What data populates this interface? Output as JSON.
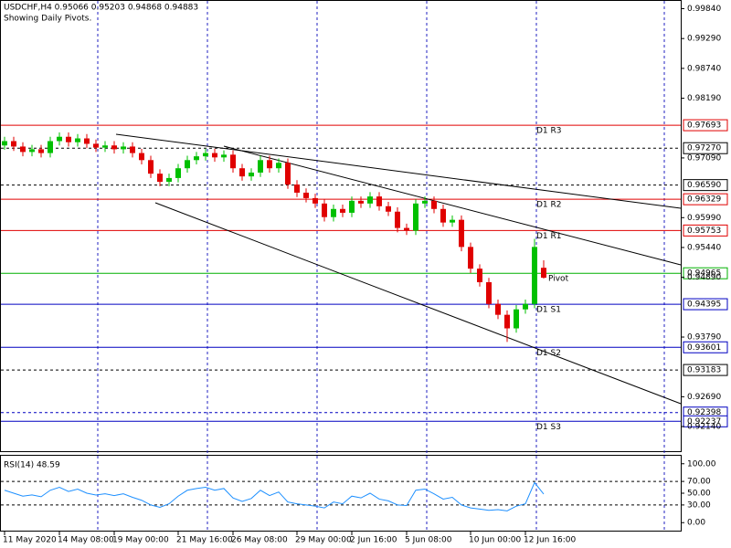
{
  "chart_data": [
    {
      "type": "candlestick",
      "title": "USDCHF,H4  0.95066 0.95203 0.94868 0.94883",
      "subtitle": "Showing Daily Pivots.",
      "categories": [
        "11 May 2020",
        null,
        null,
        null,
        null,
        null,
        "14 May 08:00",
        null,
        null,
        null,
        null,
        null,
        "19 May 00:00",
        null,
        null,
        null,
        null,
        null,
        null,
        "21 May 16:00",
        null,
        null,
        null,
        null,
        null,
        "26 May 08:00",
        null,
        null,
        null,
        null,
        null,
        null,
        "29 May 00:00",
        null,
        null,
        null,
        null,
        null,
        "2 Jun 16:00",
        null,
        null,
        null,
        null,
        null,
        "5 Jun 08:00",
        null,
        null,
        null,
        null,
        null,
        null,
        "10 Jun 00:00",
        null,
        null,
        null,
        null,
        null,
        "12 Jun 16:00",
        null,
        null
      ],
      "open": [
        0.9732,
        0.974,
        0.973,
        0.972,
        0.9725,
        0.9718,
        0.974,
        0.9748,
        0.9738,
        0.9745,
        0.9735,
        0.9728,
        0.9732,
        0.9725,
        0.973,
        0.9718,
        0.9705,
        0.968,
        0.9665,
        0.9672,
        0.969,
        0.9705,
        0.9712,
        0.9718,
        0.971,
        0.9715,
        0.969,
        0.9675,
        0.9682,
        0.9705,
        0.969,
        0.97,
        0.966,
        0.9645,
        0.9635,
        0.9625,
        0.96,
        0.9615,
        0.9608,
        0.963,
        0.9625,
        0.9638,
        0.962,
        0.961,
        0.958,
        0.9575,
        0.9625,
        0.963,
        0.9615,
        0.959,
        0.9595,
        0.9545,
        0.9505,
        0.948,
        0.944,
        0.942,
        0.9395,
        0.943,
        0.944,
        0.95066
      ],
      "high": [
        0.9748,
        0.9748,
        0.9738,
        0.9733,
        0.9733,
        0.9748,
        0.9756,
        0.9756,
        0.9753,
        0.9753,
        0.9743,
        0.974,
        0.974,
        0.9738,
        0.9738,
        0.9726,
        0.9713,
        0.9688,
        0.968,
        0.9698,
        0.9713,
        0.972,
        0.9726,
        0.9726,
        0.9723,
        0.9723,
        0.9698,
        0.969,
        0.9713,
        0.9713,
        0.9708,
        0.9708,
        0.9668,
        0.9653,
        0.9643,
        0.9633,
        0.9623,
        0.9623,
        0.9638,
        0.9638,
        0.9646,
        0.9646,
        0.9628,
        0.9618,
        0.9588,
        0.9633,
        0.9638,
        0.9638,
        0.9623,
        0.9603,
        0.9603,
        0.9553,
        0.9513,
        0.9488,
        0.9448,
        0.9428,
        0.9438,
        0.9448,
        0.956,
        0.95203
      ],
      "low": [
        0.9724,
        0.9722,
        0.9712,
        0.9712,
        0.971,
        0.971,
        0.9732,
        0.973,
        0.973,
        0.9727,
        0.972,
        0.972,
        0.9717,
        0.9717,
        0.971,
        0.9697,
        0.9672,
        0.9657,
        0.9657,
        0.9664,
        0.9682,
        0.9697,
        0.9704,
        0.9702,
        0.9702,
        0.9682,
        0.9667,
        0.9667,
        0.9674,
        0.9682,
        0.9682,
        0.9652,
        0.9637,
        0.9627,
        0.9617,
        0.9592,
        0.9592,
        0.96,
        0.96,
        0.9617,
        0.9617,
        0.9612,
        0.9602,
        0.9572,
        0.9567,
        0.9567,
        0.9617,
        0.9607,
        0.9582,
        0.9582,
        0.9537,
        0.9497,
        0.9472,
        0.9432,
        0.9412,
        0.937,
        0.9387,
        0.9422,
        0.9432,
        0.94868
      ],
      "close": [
        0.974,
        0.973,
        0.972,
        0.9725,
        0.9718,
        0.974,
        0.9748,
        0.9738,
        0.9745,
        0.9735,
        0.9728,
        0.9732,
        0.9725,
        0.973,
        0.9718,
        0.9705,
        0.968,
        0.9665,
        0.9672,
        0.969,
        0.9705,
        0.9712,
        0.9718,
        0.971,
        0.9715,
        0.969,
        0.9675,
        0.9682,
        0.9705,
        0.969,
        0.97,
        0.966,
        0.9645,
        0.9635,
        0.9625,
        0.96,
        0.9615,
        0.9608,
        0.963,
        0.9625,
        0.9638,
        0.962,
        0.961,
        0.958,
        0.9575,
        0.9625,
        0.963,
        0.9615,
        0.959,
        0.9595,
        0.9545,
        0.9505,
        0.948,
        0.944,
        0.942,
        0.9395,
        0.943,
        0.944,
        0.9545,
        0.94883
      ],
      "up_color": "#00c000",
      "down_color": "#e00000",
      "ylim": [
        0.9167,
        1.0
      ],
      "yticks": [
        {
          "value": 0.9984,
          "label": "0.99840"
        },
        {
          "value": 0.9929,
          "label": "0.99290"
        },
        {
          "value": 0.9874,
          "label": "0.98740"
        },
        {
          "value": 0.9819,
          "label": "0.98190"
        },
        {
          "value": 0.9709,
          "label": "0.97090"
        },
        {
          "value": 0.9599,
          "label": "0.95990"
        },
        {
          "value": 0.9544,
          "label": "0.95440"
        },
        {
          "value": 0.9489,
          "label": "0.94890"
        },
        {
          "value": 0.9379,
          "label": "0.93790"
        },
        {
          "value": 0.9269,
          "label": "0.92690"
        },
        {
          "value": 0.9214,
          "label": "0.92140"
        }
      ],
      "levels": [
        {
          "name": "D1 R3",
          "price": 0.97693,
          "color": "#e00000"
        },
        {
          "price": {
            "value": 0.9727,
            "label": "0.97270"
          },
          "color": "#000000",
          "dashed": true
        },
        {
          "price": {
            "value": 0.9659,
            "label": "0.96590"
          },
          "color": "#000000",
          "dashed": true
        },
        {
          "name": "D1 R2",
          "price": 0.96329,
          "color": "#e00000"
        },
        {
          "name": "D1 R1",
          "price": 0.95753,
          "color": "#e00000"
        },
        {
          "name": "Pivot",
          "price": 0.94965,
          "color": "#00b000"
        },
        {
          "name": "D1 S1",
          "price": 0.94395,
          "color": "#0000c0"
        },
        {
          "name": "D1 S2",
          "price": 0.93601,
          "color": "#0000c0"
        },
        {
          "price": 0.93183,
          "color": "#000000",
          "dashed": true
        },
        {
          "price": 0.92398,
          "color": "#0000c0",
          "dashed": true
        },
        {
          "name": "D1 S3",
          "price": 0.92237,
          "color": "#0000c0"
        }
      ]
    },
    {
      "type": "line",
      "title": "RSI(14) 48.59",
      "values": [
        55,
        50,
        45,
        47,
        44,
        55,
        60,
        53,
        57,
        50,
        47,
        49,
        46,
        49,
        43,
        38,
        30,
        26,
        32,
        45,
        55,
        58,
        60,
        55,
        58,
        42,
        36,
        41,
        55,
        46,
        52,
        35,
        32,
        30,
        28,
        25,
        35,
        32,
        45,
        42,
        50,
        40,
        37,
        30,
        29,
        55,
        57,
        49,
        40,
        43,
        30,
        25,
        23,
        21,
        22,
        20,
        28,
        32,
        68,
        48.59
      ],
      "color": "#1e90ff",
      "ylim": [
        -13.6,
        113.6
      ],
      "yticks": [
        {
          "value": 100,
          "label": "100.00"
        },
        {
          "value": 70,
          "label": "70.00"
        },
        {
          "value": 50,
          "label": "50.00"
        },
        {
          "value": 30,
          "label": "30.00"
        },
        {
          "value": 0,
          "label": "0.00"
        }
      ],
      "levels": [
        70,
        30
      ]
    }
  ]
}
